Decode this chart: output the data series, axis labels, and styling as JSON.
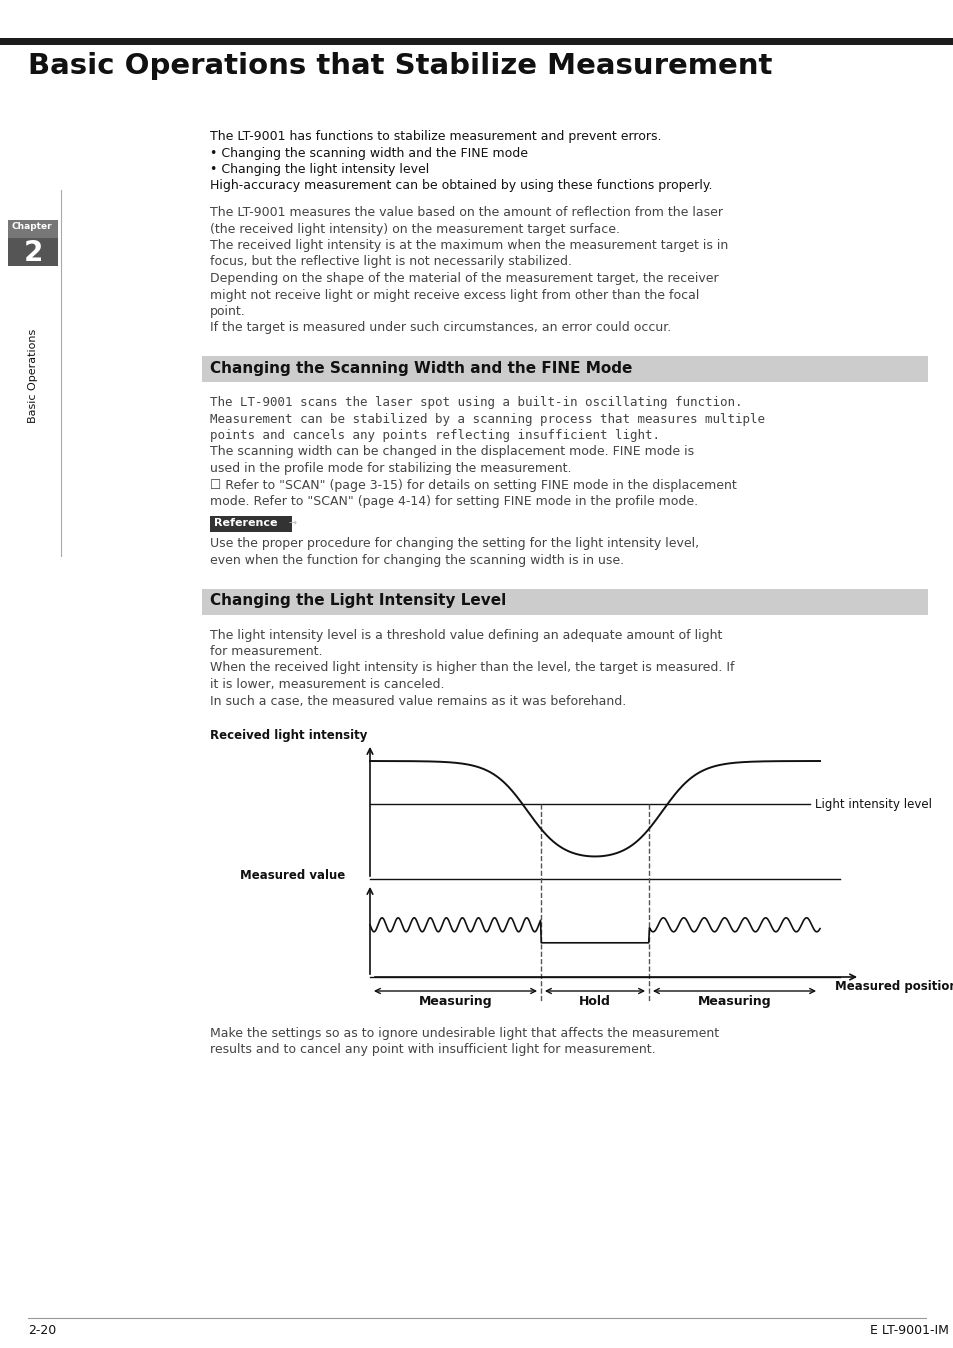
{
  "title": "Basic Operations that Stabilize Measurement",
  "page_num": "2-20",
  "manual_id": "E LT-9001-IM",
  "chapter_num": "2",
  "chapter_label": "Basic Operations",
  "section1_title": "Changing the Scanning Width and the FINE Mode",
  "section2_title": "Changing the Light Intensity Level",
  "intro_lines": [
    "The LT-9001 has functions to stabilize measurement and prevent errors.",
    "• Changing the scanning width and the FINE mode",
    "• Changing the light intensity level",
    "High-accuracy measurement can be obtained by using these functions properly."
  ],
  "body1_lines": [
    "The LT-9001 measures the value based on the amount of reflection from the laser",
    "(the received light intensity) on the measurement target surface.",
    "The received light intensity is at the maximum when the measurement target is in",
    "focus, but the reflective light is not necessarily stabilized.",
    "Depending on the shape of the material of the measurement target, the receiver",
    "might not receive light or might receive excess light from other than the focal",
    "point.",
    "If the target is measured under such circumstances, an error could occur."
  ],
  "body2_lines": [
    "The LT-9001 scans the laser spot using a built-in oscillating function.",
    "Measurement can be stabilized by a scanning process that measures multiple",
    "points and cancels any points reflecting insufficient light.",
    "The scanning width can be changed in the displacement mode. FINE mode is",
    "used in the profile mode for stabilizing the measurement.",
    "☐ Refer to \"SCAN\" (page 3-15) for details on setting FINE mode in the displacement",
    "mode. Refer to \"SCAN\" (page 4-14) for setting FINE mode in the profile mode."
  ],
  "ref_label": "Reference",
  "ref_text": [
    "Use the proper procedure for changing the setting for the light intensity level,",
    "even when the function for changing the scanning width is in use."
  ],
  "body3_lines": [
    "The light intensity level is a threshold value defining an adequate amount of light",
    "for measurement.",
    "When the received light intensity is higher than the level, the target is measured. If",
    "it is lower, measurement is canceled.",
    "In such a case, the measured value remains as it was beforehand."
  ],
  "footer_lines": [
    "Make the settings so as to ignore undesirable light that affects the measurement",
    "results and to cancel any point with insufficient light for measurement."
  ],
  "diag_label_upper": "Received light intensity",
  "diag_label_lower": "Measured value",
  "diag_label_level": "Light intensity level",
  "diag_label_pos": "Measured position",
  "diag_label_measuring": "Measuring",
  "diag_label_hold": "Hold",
  "bg": "#ffffff",
  "header_line_color": "#1c1c1c",
  "section_bg": "#cccccc",
  "sidebar_bg": "#666666",
  "sidebar_text_bg": "#555555"
}
